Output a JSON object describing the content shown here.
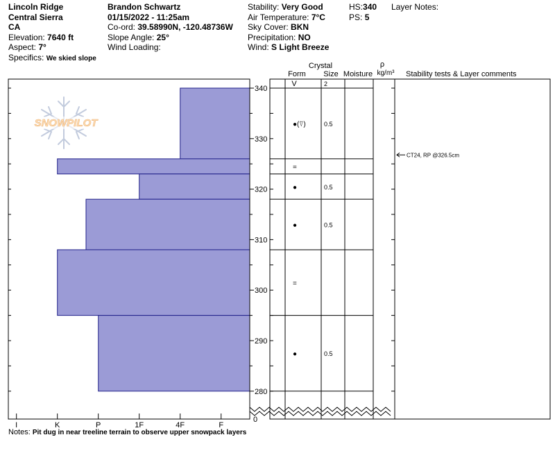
{
  "header": {
    "location_name": "Lincoln Ridge",
    "region": "Central Sierra",
    "state": "CA",
    "elevation_label": "Elevation:",
    "elevation_value": "7640 ft",
    "aspect_label": "Aspect:",
    "aspect_value": "7°",
    "specifics_label": "Specifics:",
    "specifics_value": "We skied slope",
    "observer": "Brandon Schwartz",
    "datetime": "01/15/2022 - 11:25am",
    "coord_label": "Co-ord:",
    "coord_value": "39.58990N, -120.48736W",
    "slope_label": "Slope Angle:",
    "slope_value": "25°",
    "wind_loading_label": "Wind Loading:",
    "wind_loading_value": "",
    "stability_label": "Stability:",
    "stability_value": "Very Good",
    "air_temp_label": "Air Temperature:",
    "air_temp_value": "7°C",
    "sky_label": "Sky Cover:",
    "sky_value": "BKN",
    "precip_label": "Precipitation:",
    "precip_value": "NO",
    "wind_label": "Wind:",
    "wind_value": "S Light Breeze",
    "hs_label": "HS:",
    "hs_value": "340",
    "ps_label": "PS:",
    "ps_value": "5",
    "layer_notes_label": "Layer Notes:"
  },
  "columns": {
    "crystal": "Crystal",
    "form": "Form",
    "size": "Size",
    "moisture": "Moisture",
    "rho": "ρ",
    "density_unit": "kg/m³",
    "stability": "Stability tests & Layer comments"
  },
  "logo": {
    "text": "SNOWPILOT",
    "color": "#ffd9a8"
  },
  "notes": {
    "label": "Notes:",
    "value": "Pit dug in near treeline terrain to observe upper snowpack layers"
  },
  "chart_data": {
    "type": "bar",
    "orientation": "horizontal-profile",
    "y_axis": {
      "range": [
        278,
        342
      ],
      "ticks": [
        280,
        290,
        300,
        310,
        320,
        330,
        340
      ],
      "bottom_label": "0"
    },
    "x_axis": {
      "categories": [
        "I",
        "K",
        "P",
        "1F",
        "4F",
        "F"
      ],
      "reversed": true
    },
    "fill_color": "#9b9bd6",
    "edge_color": "#22228a",
    "layers": [
      {
        "top": 340,
        "bottom": 326,
        "hardness": "4F",
        "hardness_index": 1.7,
        "form": "●(⍢)",
        "size": "0.5"
      },
      {
        "top": 326,
        "bottom": 323,
        "hardness": "K",
        "hardness_index": 4.7,
        "form": "=",
        "size": ""
      },
      {
        "top": 323,
        "bottom": 318,
        "hardness": "1F",
        "hardness_index": 2.7,
        "form": "●",
        "size": "0.5"
      },
      {
        "top": 318,
        "bottom": 308,
        "hardness": "P",
        "hardness_index": 4.0,
        "form": "●",
        "size": "0.5"
      },
      {
        "top": 308,
        "bottom": 295,
        "hardness": "K",
        "hardness_index": 4.7,
        "form": "=",
        "size": ""
      },
      {
        "top": 295,
        "bottom": 280,
        "hardness": "P",
        "hardness_index": 3.7,
        "form": "●",
        "size": "0.5"
      }
    ],
    "surface": {
      "form": "V",
      "size": "2"
    },
    "stability_tests": [
      {
        "height": 326.5,
        "label": "CT24, RP @326.5cm"
      }
    ]
  }
}
